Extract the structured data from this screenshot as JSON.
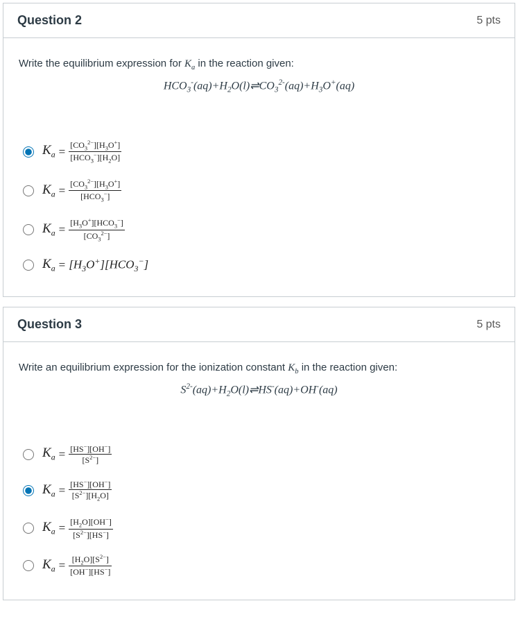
{
  "questions": [
    {
      "title": "Question 2",
      "pts": "5 pts",
      "prompt_prefix": "Write the equilibrium expression for ",
      "prompt_var": "K",
      "prompt_subvar": "a",
      "prompt_suffix": " in the reaction given:",
      "equation_html": "HCO<sub>3</sub><sup>-</sup>(aq)+H<sub>2</sub>O(l)⇌CO<sub>3</sub><sup>2-</sup>(aq)+H<sub>3</sub>O<sup>+</sup>(aq)",
      "checked_index": 0,
      "answers": [
        {
          "lhs_var": "K",
          "lhs_sub": "a",
          "frac": true,
          "num": "[CO<sub>3</sub><sup>2−</sup>][H<sub>3</sub>O<sup>+</sup>]",
          "den": "[HCO<sub>3</sub><sup>−</sup>][H<sub>2</sub>O]"
        },
        {
          "lhs_var": "K",
          "lhs_sub": "a",
          "frac": true,
          "num": "[CO<sub>3</sub><sup>2−</sup>][H<sub>3</sub>O<sup>+</sup>]",
          "den": "[HCO<sub>3</sub><sup>−</sup>]"
        },
        {
          "lhs_var": "K",
          "lhs_sub": "a",
          "frac": true,
          "num": "[H<sub>3</sub>O<sup>+</sup>][HCO<sub>3</sub><sup>−</sup>]",
          "den": "[CO<sub>3</sub><sup>2−</sup>]"
        },
        {
          "lhs_var": "K",
          "lhs_sub": "a",
          "frac": false,
          "inline": "[H<sub>3</sub>O<sup>+</sup>][HCO<sub>3</sub><sup>−</sup>]"
        }
      ]
    },
    {
      "title": "Question 3",
      "pts": "5 pts",
      "prompt_prefix": "Write an equilibrium expression for the ionization constant ",
      "prompt_var": "K",
      "prompt_subvar": "b",
      "prompt_suffix": " in the reaction given:",
      "equation_html": "S<sup>2-</sup>(aq)+H<sub>2</sub>O(l)⇌HS<sup>-</sup>(aq)+OH<sup>-</sup>(aq)",
      "checked_index": 1,
      "answers": [
        {
          "lhs_var": "K",
          "lhs_sub": "a",
          "frac": true,
          "num": "[HS<sup>−</sup>][OH<sup>−</sup>]",
          "den": "[S<sup>2−</sup>]"
        },
        {
          "lhs_var": "K",
          "lhs_sub": "a",
          "frac": true,
          "num": "[HS<sup>−</sup>][OH<sup>−</sup>]",
          "den": "[S<sup>2−</sup>][H<sub>2</sub>O]"
        },
        {
          "lhs_var": "K",
          "lhs_sub": "a",
          "frac": true,
          "num": "[H<sub>2</sub>O][OH<sup>−</sup>]",
          "den": "[S<sup>2−</sup>][HS<sup>−</sup>]"
        },
        {
          "lhs_var": "K",
          "lhs_sub": "a",
          "frac": true,
          "num": "[H<sub>2</sub>O][S<sup>2−</sup>]",
          "den": "[OH<sup>−</sup>][HS<sup>−</sup>]"
        }
      ]
    }
  ],
  "colors": {
    "border": "#c7cdd1",
    "text": "#2d3b45",
    "accent": "#0374b5"
  }
}
